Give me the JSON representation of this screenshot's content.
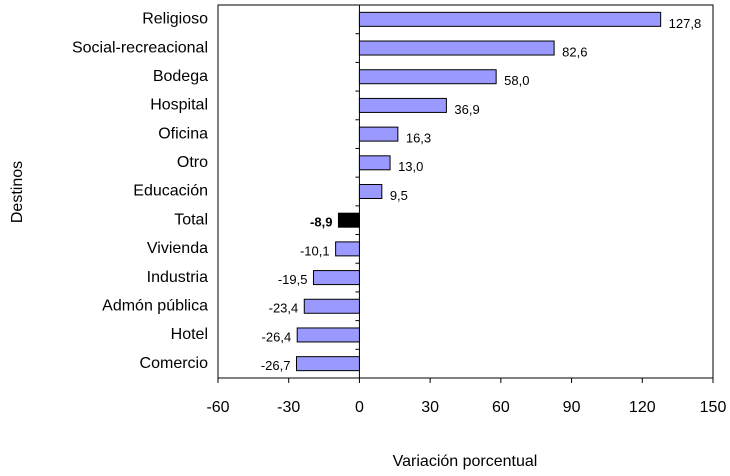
{
  "chart_data": {
    "type": "bar",
    "orientation": "horizontal",
    "x_label": "Variación porcentual",
    "y_label": "Destinos",
    "categories": [
      "Religioso",
      "Social-recreacional",
      "Bodega",
      "Hospital",
      "Oficina",
      "Otro",
      "Educación",
      "Total",
      "Vivienda",
      "Industria",
      "Admón pública",
      "Hotel",
      "Comercio"
    ],
    "values": [
      127.8,
      82.6,
      58.0,
      36.9,
      16.3,
      13.0,
      9.5,
      -8.9,
      -10.1,
      -19.5,
      -23.4,
      -26.4,
      -26.7
    ],
    "value_labels": [
      "127,8",
      "82,6",
      "58,0",
      "36,9",
      "16,3",
      "13,0",
      "9,5",
      "-8,9",
      "-10,1",
      "-19,5",
      "-23,4",
      "-26,4",
      "-26,7"
    ],
    "colors": [
      "#9999ff",
      "#9999ff",
      "#9999ff",
      "#9999ff",
      "#9999ff",
      "#9999ff",
      "#9999ff",
      "#000000",
      "#9999ff",
      "#9999ff",
      "#9999ff",
      "#9999ff",
      "#9999ff"
    ],
    "xlim": [
      -60,
      150
    ],
    "xticks": [
      -60,
      -30,
      0,
      30,
      60,
      90,
      120,
      150
    ]
  }
}
